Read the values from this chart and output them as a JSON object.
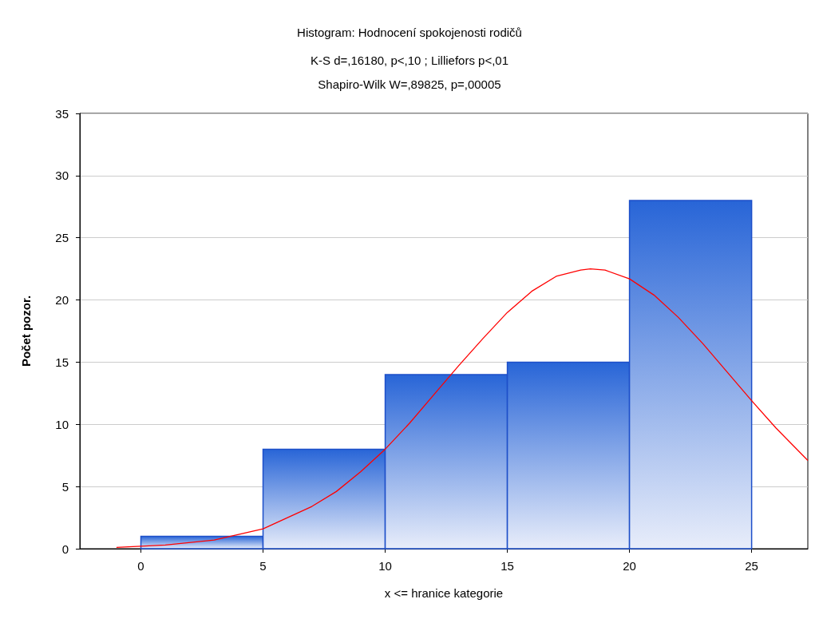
{
  "chart_data": {
    "type": "histogram",
    "title": "Histogram: Hodnocení spokojenosti rodičů",
    "subtitle": "K-S d=,16180, p<,10 ; Lilliefors p<,01\nShapiro-Wilk W=,89825, p=,00005",
    "xlabel": "x <= hranice kategorie",
    "ylabel": "Počet pozor.",
    "bins": [
      0,
      5,
      10,
      15,
      20,
      25
    ],
    "series": [
      {
        "color": "#1d4fc9",
        "values": [
          1,
          8,
          14,
          15,
          28
        ]
      },
      {
        "type": "line",
        "color": "#ff0000",
        "x": [
          -1,
          1,
          3,
          5,
          7,
          8,
          9,
          10,
          11,
          12,
          13,
          14,
          15,
          16,
          17,
          18,
          18.4,
          19,
          20,
          21,
          22,
          23,
          24,
          25,
          26,
          27.3
        ],
        "values": [
          0.1,
          0.3,
          0.7,
          1.6,
          3.4,
          4.6,
          6.2,
          8.0,
          10.1,
          12.4,
          14.7,
          16.9,
          19.0,
          20.7,
          21.9,
          22.4,
          22.5,
          22.4,
          21.7,
          20.4,
          18.6,
          16.5,
          14.2,
          11.9,
          9.7,
          7.1
        ]
      }
    ],
    "xlim": [
      -2.5,
      27.3
    ],
    "xticks": [
      0,
      5,
      10,
      15,
      20,
      25
    ],
    "ylim": [
      0,
      35
    ],
    "yticks": [
      0,
      5,
      10,
      15,
      20,
      25,
      30,
      35
    ],
    "grid": "y"
  }
}
